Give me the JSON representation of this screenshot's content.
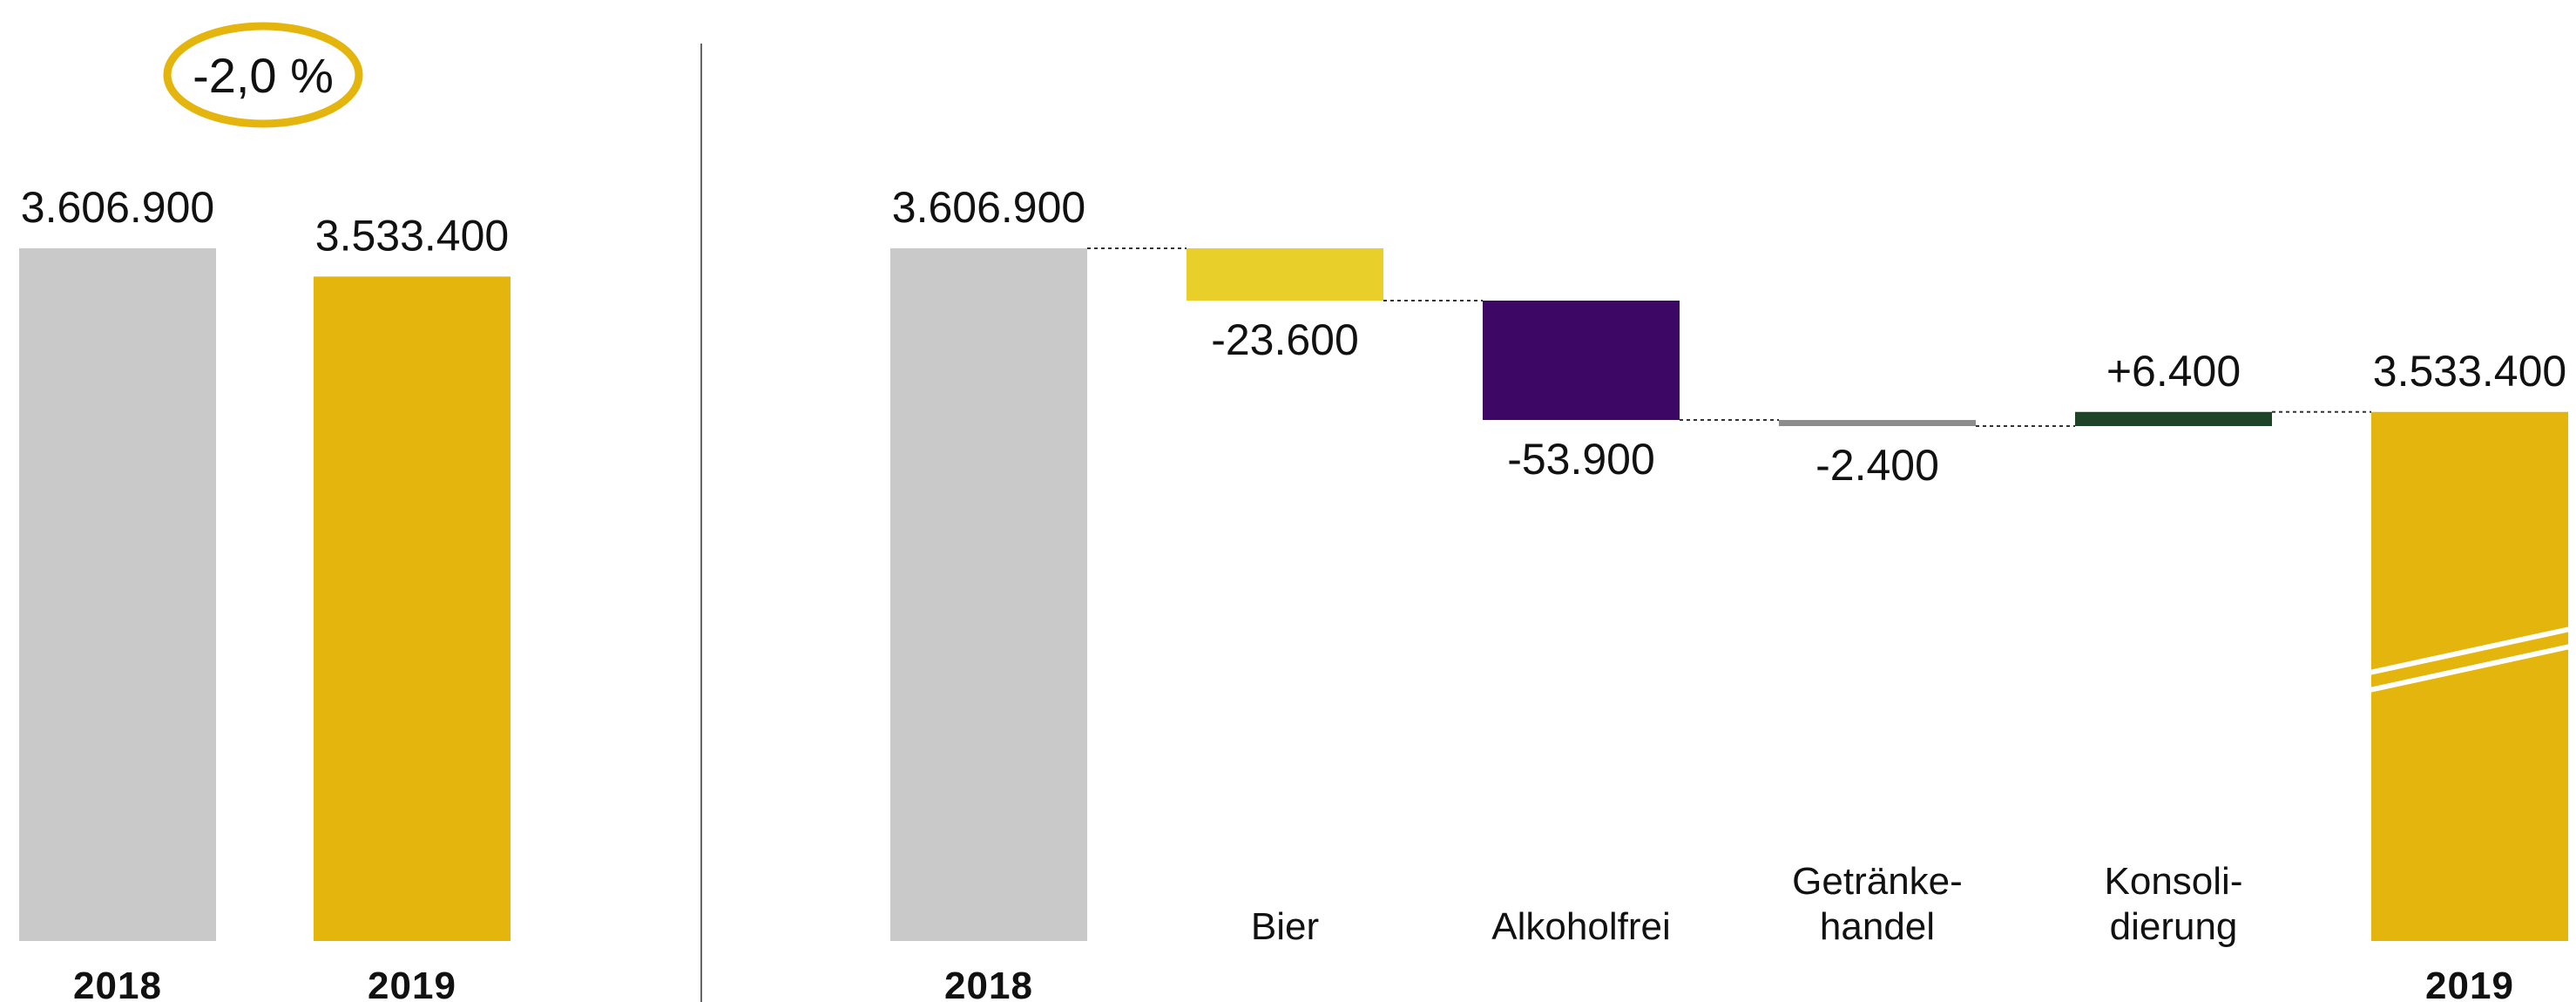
{
  "chart_data": [
    {
      "type": "bar",
      "categories": [
        "2018",
        "2019"
      ],
      "values": [
        3606900,
        3533400
      ],
      "value_labels": [
        "3.606.900",
        "3.533.400"
      ],
      "change_label": "-2,0 %",
      "colors": [
        "#c9c9c9",
        "#e3b50d"
      ],
      "highlight_color": "#e3b50d"
    },
    {
      "type": "bar",
      "subtype": "waterfall",
      "categories": [
        "2018",
        "Bier",
        "Alkoholfrei",
        "Getränke-handel",
        "Konsoli-dierung",
        "2019"
      ],
      "category_lines": [
        [
          "2018"
        ],
        [
          "Bier"
        ],
        [
          "Alkoholfrei"
        ],
        [
          "Getränke-",
          "handel"
        ],
        [
          "Konsoli-",
          "dierung"
        ],
        [
          "2019"
        ]
      ],
      "values": [
        3606900,
        -23600,
        -53900,
        -2400,
        6400,
        3533400
      ],
      "value_labels": [
        "3.606.900",
        "-23.600",
        "-53.900",
        "-2.400",
        "+6.400",
        "3.533.400"
      ],
      "colors": [
        "#c9c9c9",
        "#e8cf2a",
        "#3d0765",
        "#8c8c8c",
        "#1e4427",
        "#e3b50d"
      ],
      "axis_break_on_last": true
    }
  ]
}
